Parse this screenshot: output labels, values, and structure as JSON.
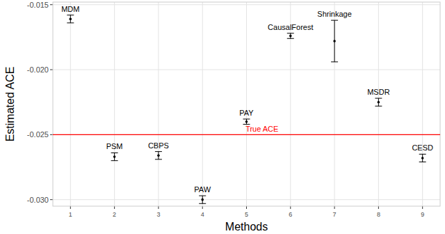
{
  "chart_data": {
    "type": "scatter",
    "x_label": "Methods",
    "y_label": "Estimated ACE",
    "x": [
      1,
      2,
      3,
      4,
      5,
      6,
      7,
      8,
      9
    ],
    "xlim": [
      0.6,
      9.4
    ],
    "xticks": [
      1,
      2,
      3,
      4,
      5,
      6,
      7,
      8,
      9
    ],
    "ylim": [
      -0.0305,
      -0.0148
    ],
    "yticks": [
      {
        "value": -0.03,
        "label": "-0.030"
      },
      -0.025,
      {
        "value": -0.02,
        "label": "-0.020"
      },
      -0.015
    ],
    "grid": true,
    "point_labels": [
      "MDM",
      "PSM",
      "CBPS",
      "PAW",
      "PAY",
      "CausalForest",
      "Shrinkage",
      "MSDR",
      "CESD"
    ],
    "series": [
      {
        "name": null,
        "color": "#000000",
        "marker": "circle",
        "values": [
          -0.0161,
          -0.0267,
          -0.0266,
          -0.03,
          -0.024,
          -0.0174,
          -0.0178,
          -0.0225,
          -0.0268
        ],
        "errors": [
          0.0003,
          0.0003,
          0.0003,
          0.0003,
          0.0002,
          0.0002,
          0.0016,
          0.0003,
          0.0003
        ]
      }
    ],
    "hline": {
      "value": -0.025,
      "label": "True ACE",
      "color": "#ff0000"
    }
  }
}
